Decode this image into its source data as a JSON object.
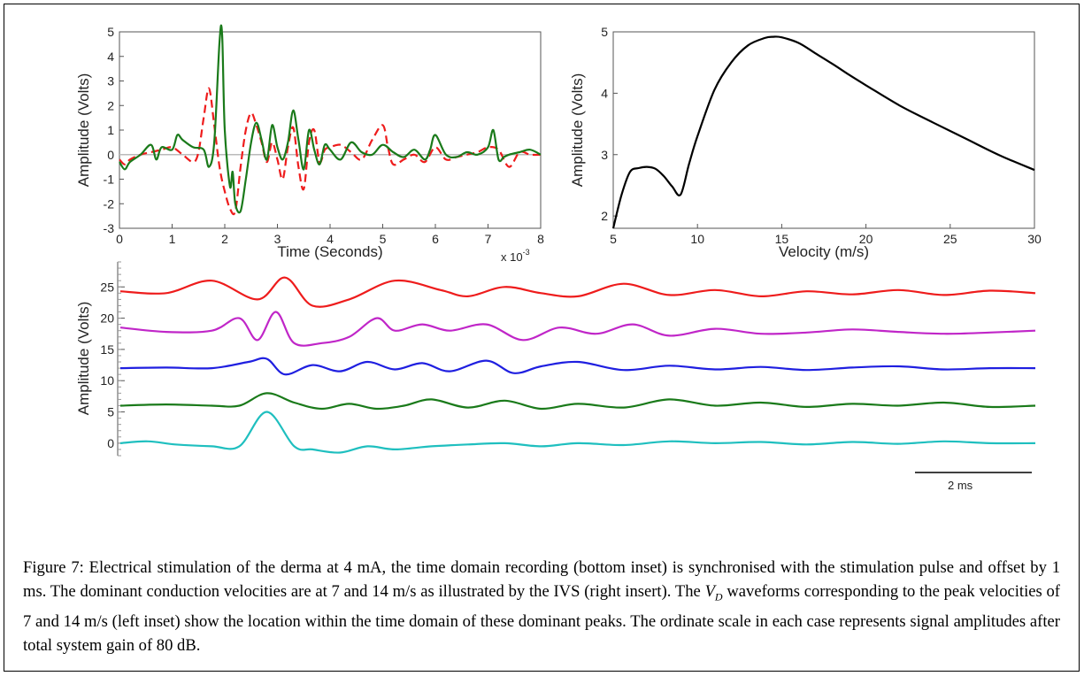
{
  "chart_data": [
    {
      "type": "line",
      "xlabel": "Time (Seconds)",
      "ylabel": "Amplitude (Volts)",
      "x_exponent_label": "x 10",
      "x_exponent_power": "-3",
      "xlim": [
        0,
        8
      ],
      "ylim": [
        -3,
        5
      ],
      "xticks": [
        "0",
        "1",
        "2",
        "3",
        "4",
        "5",
        "6",
        "7",
        "8"
      ],
      "yticks": [
        "-3",
        "-2",
        "-1",
        "0",
        "1",
        "2",
        "3",
        "4",
        "5"
      ],
      "zero_line": true,
      "series": [
        {
          "color": "#ee1c1c",
          "dashed": true,
          "x": [
            0,
            0.1,
            0.2,
            0.4,
            0.6,
            0.8,
            1.0,
            1.2,
            1.4,
            1.5,
            1.6,
            1.7,
            1.8,
            1.9,
            2.0,
            2.1,
            2.2,
            2.3,
            2.4,
            2.5,
            2.6,
            2.7,
            2.8,
            2.9,
            3.0,
            3.1,
            3.2,
            3.3,
            3.4,
            3.5,
            3.6,
            3.7,
            3.8,
            3.9,
            4.0,
            4.2,
            4.4,
            4.6,
            4.8,
            5.0,
            5.1,
            5.2,
            5.4,
            5.6,
            5.8,
            6.0,
            6.2,
            6.4,
            6.6,
            6.8,
            7.0,
            7.2,
            7.4,
            7.6,
            7.8,
            8.0
          ],
          "y": [
            -0.2,
            -0.4,
            -0.2,
            0,
            0.1,
            0.2,
            0.3,
            0,
            -0.3,
            0.1,
            1.5,
            2.7,
            1.2,
            -0.5,
            -1.5,
            -2.2,
            -2.3,
            -0.5,
            1.0,
            1.7,
            1.2,
            0.5,
            -0.3,
            0.5,
            -0.2,
            -1.0,
            0.3,
            1.1,
            -0.5,
            -1.4,
            0.5,
            1.0,
            -0.3,
            0.2,
            0.3,
            0.4,
            0.1,
            -0.2,
            0.6,
            1.2,
            0.3,
            -0.4,
            -0.2,
            0,
            -0.3,
            0.3,
            -0.2,
            -0.1,
            0,
            0.1,
            0.3,
            0.2,
            -0.5,
            0.1,
            0,
            0
          ]
        },
        {
          "color": "#1a7a1a",
          "dashed": false,
          "x": [
            0,
            0.1,
            0.2,
            0.4,
            0.6,
            0.7,
            0.8,
            1.0,
            1.1,
            1.2,
            1.4,
            1.6,
            1.7,
            1.8,
            1.9,
            1.95,
            2.0,
            2.1,
            2.15,
            2.2,
            2.3,
            2.4,
            2.5,
            2.6,
            2.7,
            2.8,
            2.9,
            3.0,
            3.1,
            3.2,
            3.3,
            3.4,
            3.5,
            3.6,
            3.7,
            3.8,
            3.9,
            4.0,
            4.2,
            4.4,
            4.6,
            4.8,
            5.0,
            5.2,
            5.4,
            5.6,
            5.8,
            5.9,
            6.0,
            6.2,
            6.4,
            6.6,
            6.8,
            7.0,
            7.1,
            7.2,
            7.3,
            7.4,
            7.6,
            7.8,
            8.0
          ],
          "y": [
            -0.3,
            -0.6,
            -0.3,
            0,
            0.4,
            -0.2,
            0.3,
            0.2,
            0.8,
            0.6,
            0.3,
            0.2,
            -0.5,
            0.5,
            4.6,
            4.9,
            1.0,
            -1.3,
            -0.7,
            -2.0,
            -2.3,
            -1.0,
            0.5,
            1.3,
            0.6,
            -0.2,
            1.2,
            0.3,
            -0.2,
            0.5,
            1.8,
            0.6,
            -0.6,
            1.0,
            0.2,
            -0.4,
            0.4,
            0.2,
            -0.2,
            0.5,
            0.1,
            0,
            0.4,
            0.1,
            -0.1,
            0.2,
            -0.2,
            0.2,
            0.8,
            0,
            -0.1,
            0.1,
            0,
            0.3,
            1.0,
            -0.2,
            -0.1,
            0,
            0.1,
            0.2,
            0
          ]
        }
      ]
    },
    {
      "type": "line",
      "xlabel": "Velocity (m/s)",
      "ylabel": "Amplitude (Volts)",
      "xlim": [
        5,
        30
      ],
      "ylim": [
        1.8,
        5
      ],
      "xticks": [
        "5",
        "10",
        "15",
        "20",
        "25",
        "30"
      ],
      "yticks": [
        "2",
        "3",
        "4",
        "5"
      ],
      "series": [
        {
          "color": "#000000",
          "x": [
            5,
            5.5,
            6,
            6.5,
            7,
            7.5,
            8,
            8.5,
            9,
            9.5,
            10,
            11,
            12,
            13,
            14,
            14.5,
            15,
            16,
            17,
            18,
            19,
            20,
            22,
            24,
            26,
            28,
            30
          ],
          "y": [
            1.8,
            2.35,
            2.72,
            2.78,
            2.8,
            2.77,
            2.65,
            2.48,
            2.35,
            2.85,
            3.3,
            4.05,
            4.5,
            4.78,
            4.9,
            4.92,
            4.91,
            4.82,
            4.65,
            4.48,
            4.3,
            4.13,
            3.8,
            3.52,
            3.25,
            2.98,
            2.75
          ]
        }
      ]
    },
    {
      "type": "line",
      "ylabel": "Amplitude (Volts)",
      "ylim": [
        -2,
        29
      ],
      "yticks": [
        "0",
        "5",
        "10",
        "15",
        "20",
        "25"
      ],
      "scale_bar_label": "2 ms",
      "series": [
        {
          "color": "#ee1c1c",
          "baseline": 24,
          "x": [
            0,
            0.05,
            0.1,
            0.15,
            0.18,
            0.21,
            0.25,
            0.3,
            0.35,
            0.38,
            0.42,
            0.46,
            0.5,
            0.55,
            0.6,
            0.65,
            0.7,
            0.75,
            0.8,
            0.85,
            0.9,
            0.95,
            1.0
          ],
          "y": [
            0.3,
            0,
            2,
            -1,
            2.5,
            -2,
            -1,
            2,
            0.5,
            -0.5,
            1,
            0,
            -0.5,
            1.5,
            -0.3,
            0.5,
            -0.5,
            0.3,
            -0.2,
            0.5,
            -0.3,
            0.4,
            0
          ]
        },
        {
          "color": "#c026c8",
          "baseline": 18,
          "x": [
            0,
            0.05,
            0.1,
            0.13,
            0.15,
            0.17,
            0.19,
            0.22,
            0.25,
            0.28,
            0.3,
            0.33,
            0.36,
            0.4,
            0.44,
            0.48,
            0.52,
            0.56,
            0.6,
            0.65,
            0.7,
            0.75,
            0.8,
            0.85,
            0.9,
            0.95,
            1.0
          ],
          "y": [
            0.5,
            -0.2,
            0,
            2,
            -1.5,
            3,
            -2,
            -2,
            -1,
            2,
            0,
            1,
            0,
            1,
            -1.5,
            0.5,
            -0.5,
            1,
            -0.8,
            0.3,
            -0.5,
            -0.3,
            0.2,
            -0.2,
            -0.5,
            -0.3,
            0
          ]
        },
        {
          "color": "#1f1fe0",
          "baseline": 12,
          "x": [
            0,
            0.05,
            0.1,
            0.14,
            0.16,
            0.18,
            0.21,
            0.24,
            0.27,
            0.3,
            0.33,
            0.36,
            0.4,
            0.43,
            0.46,
            0.5,
            0.55,
            0.6,
            0.65,
            0.7,
            0.75,
            0.8,
            0.85,
            0.9,
            0.95,
            1.0
          ],
          "y": [
            0,
            0.1,
            0,
            1,
            1.5,
            -1,
            0.5,
            -0.5,
            1,
            -0.2,
            0.8,
            -0.5,
            1.2,
            -0.8,
            0.3,
            1,
            -0.3,
            0.4,
            -0.2,
            0.2,
            -0.3,
            0.1,
            0.3,
            -0.2,
            0,
            0
          ]
        },
        {
          "color": "#1a7a1a",
          "baseline": 6,
          "x": [
            0,
            0.05,
            0.1,
            0.13,
            0.16,
            0.19,
            0.22,
            0.25,
            0.28,
            0.31,
            0.34,
            0.38,
            0.42,
            0.46,
            0.5,
            0.55,
            0.6,
            0.65,
            0.7,
            0.75,
            0.8,
            0.85,
            0.9,
            0.95,
            1.0
          ],
          "y": [
            0,
            0.2,
            0,
            0,
            2,
            0.5,
            -0.5,
            0.3,
            -0.5,
            0,
            1,
            -0.3,
            0.8,
            -0.5,
            0.3,
            -0.3,
            1,
            0,
            0.5,
            -0.2,
            0.3,
            0,
            0.5,
            -0.2,
            0
          ]
        },
        {
          "color": "#1fbfbf",
          "baseline": 0,
          "x": [
            0,
            0.03,
            0.06,
            0.1,
            0.13,
            0.16,
            0.19,
            0.21,
            0.24,
            0.27,
            0.3,
            0.34,
            0.38,
            0.42,
            0.46,
            0.5,
            0.55,
            0.6,
            0.65,
            0.7,
            0.75,
            0.8,
            0.85,
            0.9,
            0.95,
            1.0
          ],
          "y": [
            0,
            0.3,
            -0.2,
            -0.5,
            -0.5,
            5,
            -0.5,
            -1,
            -1.5,
            -0.5,
            -1,
            -0.5,
            -0.2,
            0,
            -0.5,
            0,
            -0.3,
            0.3,
            0,
            0.2,
            -0.2,
            0.2,
            -0.1,
            0.3,
            0,
            0
          ]
        }
      ]
    }
  ],
  "caption": {
    "part1": "Figure 7:  Electrical stimulation of the derma at 4 mA, the time domain recording (bottom inset) is synchronised with the stimulation pulse and offset by 1 ms. The dominant conduction velocities are at 7 and 14 m/s as illustrated by the IVS (right insert). The ",
    "vd_symbol": "V",
    "vd_subscript": "D",
    "part2": " waveforms corresponding to the peak velocities of 7 and 14 m/s (left inset) show the location within the time domain of these dominant peaks. The ordinate scale in each case represents signal amplitudes after total system gain of 80 dB."
  }
}
